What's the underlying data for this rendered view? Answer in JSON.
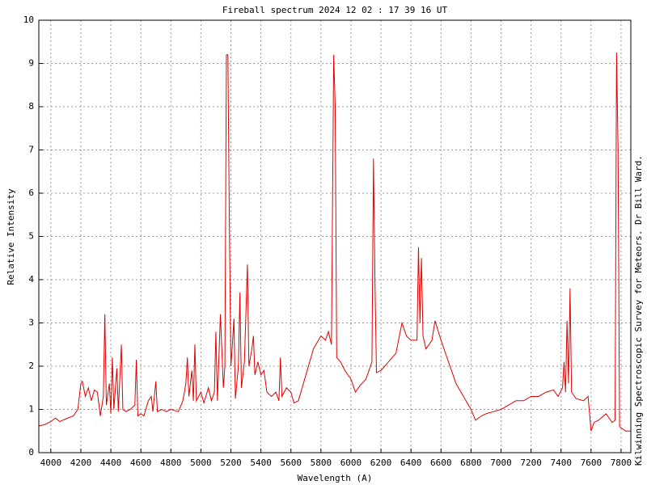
{
  "chart_data": {
    "type": "line",
    "title": "Fireball spectrum 2024 12 02 : 17 39 16 UT",
    "x_label": "Wavelength (A)",
    "y_label": "Relative Intensity",
    "annotation": "Kilwinning Spectroscopic Survey for Meteors. Dr Bill Ward.",
    "color": "#e00000",
    "grid": true,
    "xlim": [
      3920,
      7865
    ],
    "ylim": [
      0,
      10
    ],
    "xticks": [
      4000,
      4200,
      4400,
      4600,
      4800,
      5000,
      5200,
      5400,
      5600,
      5800,
      6000,
      6200,
      6400,
      6600,
      6800,
      7000,
      7200,
      7400,
      7600,
      7800
    ],
    "yticks": [
      0,
      1,
      2,
      3,
      4,
      5,
      6,
      7,
      8,
      9,
      10
    ],
    "x": [
      3920,
      3960,
      4000,
      4030,
      4060,
      4100,
      4150,
      4180,
      4200,
      4210,
      4230,
      4250,
      4270,
      4290,
      4310,
      4330,
      4350,
      4360,
      4370,
      4390,
      4400,
      4410,
      4420,
      4440,
      4450,
      4470,
      4480,
      4500,
      4530,
      4560,
      4570,
      4580,
      4600,
      4620,
      4650,
      4670,
      4680,
      4700,
      4710,
      4740,
      4770,
      4800,
      4850,
      4880,
      4900,
      4910,
      4920,
      4940,
      4950,
      4960,
      4970,
      5000,
      5020,
      5050,
      5070,
      5090,
      5100,
      5110,
      5130,
      5150,
      5160,
      5170,
      5180,
      5190,
      5200,
      5210,
      5220,
      5230,
      5250,
      5260,
      5270,
      5290,
      5310,
      5320,
      5340,
      5350,
      5360,
      5380,
      5400,
      5420,
      5440,
      5470,
      5500,
      5520,
      5530,
      5540,
      5570,
      5600,
      5620,
      5650,
      5700,
      5750,
      5800,
      5830,
      5850,
      5870,
      5885,
      5895,
      5905,
      5930,
      5960,
      6000,
      6030,
      6060,
      6100,
      6140,
      6150,
      6160,
      6170,
      6200,
      6250,
      6300,
      6340,
      6370,
      6400,
      6440,
      6450,
      6460,
      6470,
      6480,
      6500,
      6540,
      6560,
      6600,
      6650,
      6700,
      6750,
      6800,
      6830,
      6870,
      6900,
      6950,
      7000,
      7050,
      7100,
      7150,
      7200,
      7250,
      7300,
      7350,
      7380,
      7410,
      7420,
      7430,
      7440,
      7450,
      7460,
      7470,
      7500,
      7550,
      7580,
      7600,
      7620,
      7650,
      7700,
      7740,
      7760,
      7770,
      7780,
      7790,
      7830,
      7865
    ],
    "values": [
      0.62,
      0.65,
      0.72,
      0.8,
      0.72,
      0.78,
      0.85,
      1.0,
      1.6,
      1.65,
      1.3,
      1.5,
      1.2,
      1.45,
      1.4,
      0.85,
      1.3,
      3.2,
      1.1,
      1.6,
      0.9,
      2.2,
      1.0,
      1.95,
      0.95,
      2.5,
      1.0,
      0.95,
      1.0,
      1.1,
      2.15,
      0.85,
      0.9,
      0.85,
      1.2,
      1.3,
      0.95,
      1.65,
      0.95,
      1.0,
      0.95,
      1.0,
      0.95,
      1.2,
      1.6,
      2.2,
      1.3,
      1.9,
      1.2,
      2.5,
      1.2,
      1.4,
      1.15,
      1.5,
      1.2,
      1.4,
      2.8,
      1.2,
      3.2,
      1.5,
      2.0,
      9.2,
      9.2,
      5.2,
      2.0,
      2.5,
      3.1,
      1.25,
      2.0,
      3.7,
      1.5,
      2.1,
      4.35,
      2.0,
      2.4,
      2.7,
      1.8,
      2.1,
      1.8,
      1.9,
      1.4,
      1.3,
      1.4,
      1.2,
      2.2,
      1.3,
      1.5,
      1.4,
      1.15,
      1.2,
      1.8,
      2.4,
      2.7,
      2.6,
      2.8,
      2.5,
      9.2,
      8.0,
      2.2,
      2.1,
      1.9,
      1.7,
      1.4,
      1.55,
      1.7,
      2.1,
      6.8,
      4.0,
      1.85,
      1.9,
      2.1,
      2.3,
      3.0,
      2.7,
      2.6,
      2.6,
      4.75,
      3.0,
      4.5,
      2.7,
      2.4,
      2.6,
      3.05,
      2.6,
      2.1,
      1.6,
      1.3,
      1.0,
      0.75,
      0.85,
      0.9,
      0.95,
      1.0,
      1.1,
      1.2,
      1.2,
      1.3,
      1.3,
      1.4,
      1.45,
      1.3,
      1.5,
      2.1,
      1.4,
      3.05,
      1.6,
      3.8,
      1.4,
      1.25,
      1.2,
      1.3,
      0.5,
      0.7,
      0.75,
      0.9,
      0.7,
      0.75,
      9.25,
      7.0,
      0.6,
      0.5,
      0.5
    ]
  }
}
